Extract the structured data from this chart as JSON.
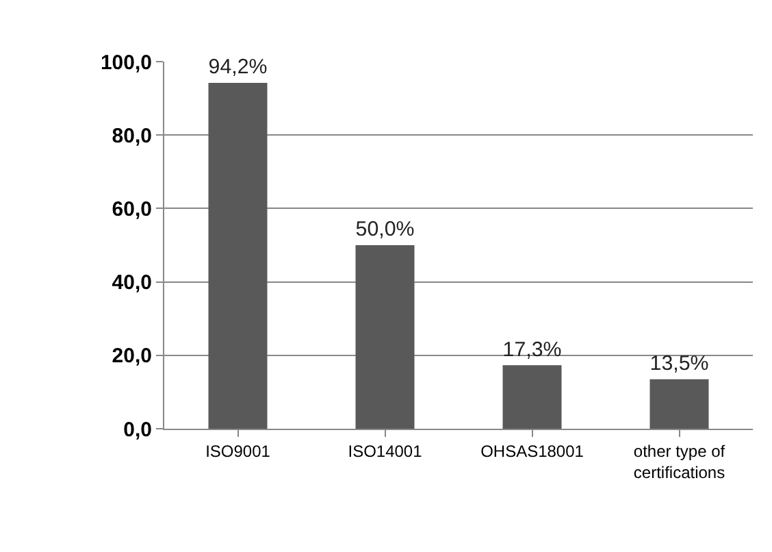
{
  "chart_data": {
    "type": "bar",
    "categories": [
      "ISO9001",
      "ISO14001",
      "OHSAS18001",
      "other type of certifications"
    ],
    "values": [
      94.2,
      50.0,
      17.3,
      13.5
    ],
    "value_labels": [
      "94,2%",
      "50,0%",
      "17,3%",
      "13,5%"
    ],
    "color": "#595959",
    "ylim": [
      0,
      100
    ],
    "yticks": [
      {
        "value": 0,
        "label": "0,0"
      },
      {
        "value": 20,
        "label": "20,0"
      },
      {
        "value": 40,
        "label": "40,0"
      },
      {
        "value": 60,
        "label": "60,0"
      },
      {
        "value": 80,
        "label": "80,0"
      },
      {
        "value": 100,
        "label": "100,0"
      }
    ],
    "grid": "y"
  }
}
